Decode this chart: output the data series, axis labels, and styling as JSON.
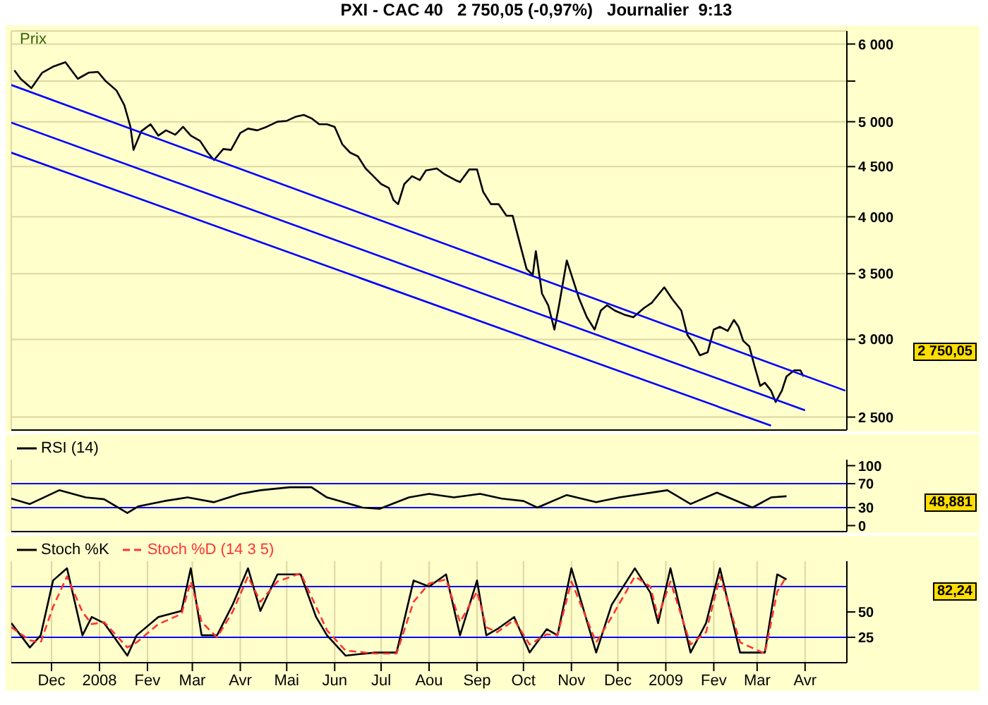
{
  "chart_data": [
    {
      "type": "line",
      "title": "PXI - CAC 40   2 750,05 (-0,97%)   Journalier  9:13",
      "ylabel": "Prix",
      "log": true,
      "grid": true,
      "tick_labels": "y",
      "xlim": [
        "2007-11-05",
        "2009-04-28"
      ],
      "xticks": [
        {
          "value": "2007-12-01",
          "label": null
        },
        {
          "value": "2008-01-01",
          "label": null
        },
        {
          "value": "2008-02-01",
          "label": null
        },
        {
          "value": "2008-03-01",
          "label": null
        },
        {
          "value": "2008-04-01",
          "label": null
        },
        {
          "value": "2008-05-01",
          "label": null
        },
        {
          "value": "2008-06-01",
          "label": null
        },
        {
          "value": "2008-07-01",
          "label": null
        },
        {
          "value": "2008-08-01",
          "label": null
        },
        {
          "value": "2008-09-01",
          "label": null
        },
        {
          "value": "2008-10-01",
          "label": null
        },
        {
          "value": "2008-11-01",
          "label": null
        },
        {
          "value": "2008-12-01",
          "label": null
        },
        {
          "value": "2009-01-01",
          "label": null
        },
        {
          "value": "2009-02-01",
          "label": null
        },
        {
          "value": "2009-03-01",
          "label": null
        },
        {
          "value": "2009-04-01",
          "label": null
        }
      ],
      "ylim": [
        2425,
        6186
      ],
      "yticks": [
        {
          "value": 2500,
          "label": "2 500"
        },
        {
          "value": 3000,
          "label": "3 000"
        },
        {
          "value": 3500,
          "label": "3 500"
        },
        {
          "value": 4000,
          "label": "4 000"
        },
        {
          "value": 4500,
          "label": "4 500"
        },
        {
          "value": 5000,
          "label": "5 000"
        },
        {
          "value": 5500,
          "label": null
        },
        {
          "value": 6000,
          "label": "6 000"
        }
      ],
      "annotations": [
        "2 750,05"
      ],
      "series": [
        {
          "color": "#000000",
          "x": [
            "2007-11-07",
            "2007-11-11",
            "2007-11-18",
            "2007-11-25",
            "2007-12-02",
            "2007-12-10",
            "2007-12-18",
            "2007-12-25",
            "2007-12-31",
            "2008-01-05",
            "2008-01-12",
            "2008-01-17",
            "2008-01-19",
            "2008-01-21",
            "2008-01-23",
            "2008-01-28",
            "2008-02-03",
            "2008-02-08",
            "2008-02-13",
            "2008-02-19",
            "2008-02-24",
            "2008-02-29",
            "2008-03-06",
            "2008-03-11",
            "2008-03-15",
            "2008-03-21",
            "2008-03-26",
            "2008-04-01",
            "2008-04-06",
            "2008-04-12",
            "2008-04-18",
            "2008-04-25",
            "2008-05-01",
            "2008-05-07",
            "2008-05-12",
            "2008-05-17",
            "2008-05-22",
            "2008-05-27",
            "2008-06-01",
            "2008-06-06",
            "2008-06-11",
            "2008-06-16",
            "2008-06-21",
            "2008-06-26",
            "2008-07-01",
            "2008-07-06",
            "2008-07-09",
            "2008-07-12",
            "2008-07-16",
            "2008-07-21",
            "2008-07-26",
            "2008-07-30",
            "2008-08-06",
            "2008-08-11",
            "2008-08-18",
            "2008-08-21",
            "2008-08-27",
            "2008-09-01",
            "2008-09-05",
            "2008-09-10",
            "2008-09-15",
            "2008-09-20",
            "2008-09-24",
            "2008-09-29",
            "2008-10-03",
            "2008-10-07",
            "2008-10-09",
            "2008-10-13",
            "2008-10-17",
            "2008-10-21",
            "2008-10-24",
            "2008-10-29",
            "2008-11-01",
            "2008-11-06",
            "2008-11-11",
            "2008-11-16",
            "2008-11-20",
            "2008-11-24",
            "2008-11-29",
            "2008-12-05",
            "2008-12-11",
            "2008-12-18",
            "2008-12-23",
            "2008-12-31",
            "2009-01-05",
            "2009-01-11",
            "2009-01-15",
            "2009-01-19",
            "2009-01-23",
            "2009-01-28",
            "2009-02-01",
            "2009-02-05",
            "2009-02-10",
            "2009-02-14",
            "2009-02-17",
            "2009-02-20",
            "2009-02-24",
            "2009-02-27",
            "2009-03-03",
            "2009-03-06",
            "2009-03-10",
            "2009-03-13",
            "2009-03-17",
            "2009-03-20",
            "2009-03-25",
            "2009-03-29",
            "2009-03-31"
          ],
          "values": [
            5640,
            5530,
            5410,
            5610,
            5690,
            5750,
            5530,
            5610,
            5620,
            5500,
            5380,
            5200,
            5070,
            4940,
            4680,
            4890,
            4970,
            4840,
            4900,
            4850,
            4940,
            4840,
            4780,
            4650,
            4570,
            4690,
            4680,
            4870,
            4920,
            4900,
            4940,
            5000,
            5010,
            5060,
            5080,
            5040,
            4970,
            4970,
            4940,
            4740,
            4650,
            4610,
            4480,
            4400,
            4320,
            4280,
            4160,
            4120,
            4320,
            4400,
            4360,
            4460,
            4480,
            4420,
            4360,
            4340,
            4470,
            4470,
            4240,
            4120,
            4120,
            4010,
            4010,
            3740,
            3540,
            3490,
            3690,
            3340,
            3250,
            3070,
            3250,
            3610,
            3490,
            3300,
            3160,
            3070,
            3210,
            3250,
            3210,
            3180,
            3160,
            3230,
            3270,
            3390,
            3300,
            3210,
            3030,
            2970,
            2890,
            2910,
            3070,
            3090,
            3060,
            3140,
            3090,
            2990,
            2950,
            2830,
            2690,
            2710,
            2660,
            2590,
            2660,
            2750,
            2790,
            2790,
            2750
          ]
        },
        {
          "color": "#0000ff",
          "x": [
            "2007-11-05",
            "2009-04-27"
          ],
          "values": [
            5450,
            2660
          ]
        },
        {
          "color": "#0000ff",
          "x": [
            "2007-11-05",
            "2009-04-01"
          ],
          "values": [
            4990,
            2540
          ]
        },
        {
          "color": "#0000ff",
          "x": [
            "2007-11-05",
            "2009-03-10"
          ],
          "values": [
            4650,
            2450
          ]
        }
      ]
    },
    {
      "type": "line",
      "grid": "x",
      "legend": "top left",
      "tick_labels": "y",
      "xlim": [
        "2007-11-05",
        "2009-04-28"
      ],
      "xticks": [
        {
          "value": "2007-12-01",
          "label": null
        },
        {
          "value": "2008-01-01",
          "label": null
        },
        {
          "value": "2008-02-01",
          "label": null
        },
        {
          "value": "2008-03-01",
          "label": null
        },
        {
          "value": "2008-04-01",
          "label": null
        },
        {
          "value": "2008-05-01",
          "label": null
        },
        {
          "value": "2008-06-01",
          "label": null
        },
        {
          "value": "2008-07-01",
          "label": null
        },
        {
          "value": "2008-08-01",
          "label": null
        },
        {
          "value": "2008-09-01",
          "label": null
        },
        {
          "value": "2008-10-01",
          "label": null
        },
        {
          "value": "2008-11-01",
          "label": null
        },
        {
          "value": "2008-12-01",
          "label": null
        },
        {
          "value": "2009-01-01",
          "label": null
        },
        {
          "value": "2009-02-01",
          "label": null
        },
        {
          "value": "2009-03-01",
          "label": null
        },
        {
          "value": "2009-04-01",
          "label": null
        }
      ],
      "ylim": [
        -10,
        110
      ],
      "yticks": [
        0,
        30,
        70,
        100
      ],
      "ref_lines": [
        {
          "axis": "y",
          "value": 70,
          "color": "#0000ff"
        },
        {
          "axis": "y",
          "value": 30,
          "color": "#0000ff"
        }
      ],
      "annotations": [
        "48,881"
      ],
      "series": [
        {
          "name": "RSI (14)",
          "color": "#000000",
          "x": [
            "2007-11-05",
            "2007-11-17",
            "2007-12-06",
            "2007-12-23",
            "2008-01-04",
            "2008-01-19",
            "2008-01-26",
            "2008-02-12",
            "2008-02-27",
            "2008-03-15",
            "2008-04-01",
            "2008-04-14",
            "2008-05-03",
            "2008-05-17",
            "2008-05-27",
            "2008-06-19",
            "2008-06-30",
            "2008-07-19",
            "2008-08-01",
            "2008-08-17",
            "2008-09-03",
            "2008-09-17",
            "2008-10-01",
            "2008-10-10",
            "2008-10-29",
            "2008-11-17",
            "2008-12-02",
            "2009-01-02",
            "2009-01-17",
            "2009-02-03",
            "2009-02-26",
            "2009-03-10",
            "2009-03-20"
          ],
          "values": [
            45,
            36,
            59,
            47,
            44,
            21,
            32,
            41,
            47,
            39,
            53,
            59,
            64,
            64,
            47,
            30,
            28,
            47,
            53,
            47,
            53,
            45,
            41,
            30,
            51,
            39,
            47,
            59,
            36,
            55,
            30,
            47,
            49
          ]
        }
      ]
    },
    {
      "type": "line",
      "grid": "x",
      "legend": "top left",
      "xlim": [
        "2007-11-05",
        "2009-04-28"
      ],
      "xticks": [
        {
          "value": "2007-12-01",
          "label": "Dec"
        },
        {
          "value": "2008-01-01",
          "label": "2008"
        },
        {
          "value": "2008-02-01",
          "label": "Fev"
        },
        {
          "value": "2008-03-01",
          "label": "Mar"
        },
        {
          "value": "2008-04-01",
          "label": "Avr"
        },
        {
          "value": "2008-05-01",
          "label": "Mai"
        },
        {
          "value": "2008-06-01",
          "label": "Jun"
        },
        {
          "value": "2008-07-01",
          "label": "Jul"
        },
        {
          "value": "2008-08-01",
          "label": "Aou"
        },
        {
          "value": "2008-09-01",
          "label": "Sep"
        },
        {
          "value": "2008-10-01",
          "label": "Oct"
        },
        {
          "value": "2008-11-01",
          "label": "Nov"
        },
        {
          "value": "2008-12-01",
          "label": "Dec"
        },
        {
          "value": "2009-01-01",
          "label": "2009"
        },
        {
          "value": "2009-02-01",
          "label": "Fev"
        },
        {
          "value": "2009-03-01",
          "label": "Mar"
        },
        {
          "value": "2009-04-01",
          "label": "Avr"
        }
      ],
      "ylim": [
        0,
        100
      ],
      "yticks": [
        25,
        50
      ],
      "ref_lines": [
        {
          "axis": "y",
          "value": 75,
          "color": "#0000ff"
        },
        {
          "axis": "y",
          "value": 25,
          "color": "#0000ff"
        }
      ],
      "annotations": [
        "82,24"
      ],
      "series": [
        {
          "name": "Stoch %K",
          "color": "#000000",
          "x": [
            "2007-11-05",
            "2007-11-17",
            "2007-11-24",
            "2007-12-02",
            "2007-12-11",
            "2007-12-21",
            "2007-12-27",
            "2008-01-04",
            "2008-01-19",
            "2008-01-25",
            "2008-02-08",
            "2008-02-23",
            "2008-02-29",
            "2008-03-07",
            "2008-03-17",
            "2008-03-27",
            "2008-04-06",
            "2008-04-14",
            "2008-04-25",
            "2008-05-10",
            "2008-05-20",
            "2008-05-27",
            "2008-06-08",
            "2008-06-27",
            "2008-07-11",
            "2008-07-22",
            "2008-08-01",
            "2008-08-12",
            "2008-08-21",
            "2008-09-01",
            "2008-09-07",
            "2008-09-14",
            "2008-09-25",
            "2008-10-05",
            "2008-10-16",
            "2008-10-23",
            "2008-11-01",
            "2008-11-17",
            "2008-11-27",
            "2008-12-12",
            "2008-12-22",
            "2008-12-27",
            "2009-01-04",
            "2009-01-17",
            "2009-01-27",
            "2009-02-05",
            "2009-02-18",
            "2009-03-06",
            "2009-03-14",
            "2009-03-20"
          ],
          "values": [
            39,
            15,
            27,
            81,
            93,
            27,
            45,
            39,
            7,
            27,
            45,
            51,
            93,
            27,
            27,
            57,
            93,
            51,
            87,
            87,
            45,
            27,
            7,
            10,
            10,
            81,
            75,
            87,
            27,
            81,
            27,
            33,
            45,
            10,
            33,
            27,
            93,
            10,
            57,
            93,
            69,
            39,
            93,
            10,
            39,
            93,
            10,
            10,
            87,
            82
          ]
        },
        {
          "name": "Stoch %D (14 3 5)",
          "color": "#ff3333",
          "line_style": "dashed",
          "x": [
            "2007-11-05",
            "2007-11-17",
            "2007-11-24",
            "2007-12-02",
            "2007-12-11",
            "2007-12-21",
            "2007-12-27",
            "2008-01-04",
            "2008-01-19",
            "2008-01-25",
            "2008-02-08",
            "2008-02-23",
            "2008-02-29",
            "2008-03-07",
            "2008-03-17",
            "2008-03-27",
            "2008-04-06",
            "2008-04-14",
            "2008-04-25",
            "2008-05-10",
            "2008-05-20",
            "2008-05-27",
            "2008-06-08",
            "2008-06-27",
            "2008-07-11",
            "2008-07-22",
            "2008-08-01",
            "2008-08-12",
            "2008-08-21",
            "2008-09-01",
            "2008-09-07",
            "2008-09-14",
            "2008-09-25",
            "2008-10-05",
            "2008-10-16",
            "2008-10-23",
            "2008-11-01",
            "2008-11-17",
            "2008-11-27",
            "2008-12-12",
            "2008-12-22",
            "2008-12-27",
            "2009-01-04",
            "2009-01-17",
            "2009-01-27",
            "2009-02-05",
            "2009-02-18",
            "2009-03-06",
            "2009-03-14",
            "2009-03-20"
          ],
          "values": [
            35,
            22,
            20,
            55,
            85,
            50,
            38,
            40,
            15,
            20,
            38,
            48,
            80,
            40,
            25,
            50,
            85,
            60,
            80,
            88,
            55,
            32,
            12,
            9,
            9,
            60,
            78,
            82,
            40,
            70,
            35,
            30,
            42,
            18,
            28,
            27,
            80,
            20,
            45,
            85,
            75,
            45,
            80,
            18,
            30,
            85,
            20,
            9,
            70,
            85
          ]
        }
      ]
    }
  ]
}
